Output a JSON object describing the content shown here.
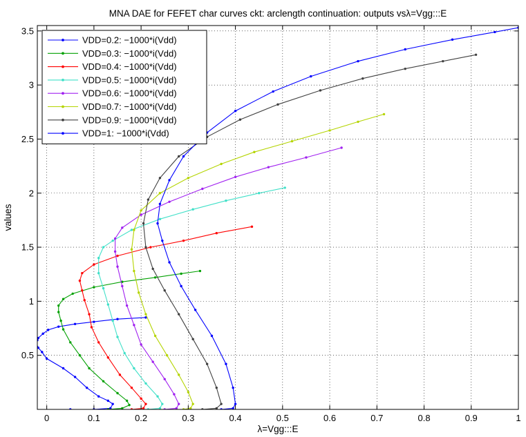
{
  "chart_data": {
    "type": "line",
    "title": "MNA DAE for FEFET char curves ckt: arclength continuation: outputs vsλ=Vgg:::E",
    "xlabel": "λ=Vgg:::E",
    "ylabel": "values",
    "xlim": [
      -0.02,
      1.0
    ],
    "ylim": [
      0,
      3.55
    ],
    "xticks": [
      "0",
      "0.1",
      "0.2",
      "0.3",
      "0.4",
      "0.5",
      "0.6",
      "0.7",
      "0.8",
      "0.9",
      "1"
    ],
    "xtick_values": [
      0,
      0.1,
      0.2,
      0.3,
      0.4,
      0.5,
      0.6,
      0.7,
      0.8,
      0.9,
      1.0
    ],
    "yticks": [
      "0.5",
      "1",
      "1.5",
      "2",
      "2.5",
      "3",
      "3.5"
    ],
    "ytick_values": [
      0.5,
      1.0,
      1.5,
      2.0,
      2.5,
      3.0,
      3.5
    ],
    "grid": true,
    "legend_position": "top-left",
    "series": [
      {
        "name": "VDD=0.2: −1000*i(Vdd)",
        "color": "#0000ff",
        "points": [
          [
            0.05,
            0
          ],
          [
            0.1,
            0
          ],
          [
            0.135,
            0.01
          ],
          [
            0.14,
            0.05
          ],
          [
            0.13,
            0.08
          ],
          [
            0.11,
            0.12
          ],
          [
            0.085,
            0.2
          ],
          [
            0.06,
            0.3
          ],
          [
            0.035,
            0.38
          ],
          [
            0.0,
            0.47
          ],
          [
            -0.01,
            0.53
          ],
          [
            -0.018,
            0.57
          ],
          [
            -0.022,
            0.61
          ],
          [
            -0.02,
            0.64
          ],
          [
            -0.018,
            0.66
          ],
          [
            -0.008,
            0.7
          ],
          [
            0.003,
            0.735
          ],
          [
            0.025,
            0.765
          ],
          [
            0.06,
            0.79
          ],
          [
            0.1,
            0.81
          ],
          [
            0.15,
            0.835
          ],
          [
            0.21,
            0.85
          ]
        ]
      },
      {
        "name": "VDD=0.3: −1000*i(Vdd)",
        "color": "#00a000",
        "points": [
          [
            0.13,
            0
          ],
          [
            0.16,
            0.01
          ],
          [
            0.175,
            0.04
          ],
          [
            0.17,
            0.08
          ],
          [
            0.15,
            0.15
          ],
          [
            0.12,
            0.26
          ],
          [
            0.09,
            0.38
          ],
          [
            0.07,
            0.5
          ],
          [
            0.05,
            0.62
          ],
          [
            0.035,
            0.74
          ],
          [
            0.03,
            0.82
          ],
          [
            0.025,
            0.9
          ],
          [
            0.025,
            0.96
          ],
          [
            0.035,
            1.02
          ],
          [
            0.055,
            1.07
          ],
          [
            0.1,
            1.13
          ],
          [
            0.16,
            1.18
          ],
          [
            0.23,
            1.22
          ],
          [
            0.285,
            1.255
          ],
          [
            0.325,
            1.28
          ]
        ]
      },
      {
        "name": "VDD=0.4: −1000*i(Vdd)",
        "color": "#ff0000",
        "points": [
          [
            0.18,
            0
          ],
          [
            0.205,
            0.01
          ],
          [
            0.21,
            0.05
          ],
          [
            0.2,
            0.1
          ],
          [
            0.18,
            0.2
          ],
          [
            0.155,
            0.32
          ],
          [
            0.13,
            0.48
          ],
          [
            0.11,
            0.62
          ],
          [
            0.095,
            0.76
          ],
          [
            0.09,
            0.88
          ],
          [
            0.08,
            1.01
          ],
          [
            0.075,
            1.1
          ],
          [
            0.07,
            1.19
          ],
          [
            0.075,
            1.26
          ],
          [
            0.1,
            1.34
          ],
          [
            0.15,
            1.42
          ],
          [
            0.22,
            1.5
          ],
          [
            0.29,
            1.56
          ],
          [
            0.36,
            1.63
          ],
          [
            0.435,
            1.69
          ]
        ]
      },
      {
        "name": "VDD=0.5: −1000*i(Vdd)",
        "color": "#40e0c8",
        "points": [
          [
            0.215,
            0
          ],
          [
            0.24,
            0.01
          ],
          [
            0.245,
            0.05
          ],
          [
            0.235,
            0.12
          ],
          [
            0.21,
            0.24
          ],
          [
            0.185,
            0.38
          ],
          [
            0.165,
            0.52
          ],
          [
            0.15,
            0.67
          ],
          [
            0.14,
            0.82
          ],
          [
            0.13,
            0.97
          ],
          [
            0.12,
            1.12
          ],
          [
            0.11,
            1.26
          ],
          [
            0.11,
            1.4
          ],
          [
            0.12,
            1.5
          ],
          [
            0.14,
            1.56
          ],
          [
            0.18,
            1.66
          ],
          [
            0.24,
            1.76
          ],
          [
            0.31,
            1.85
          ],
          [
            0.38,
            1.93
          ],
          [
            0.45,
            2.0
          ],
          [
            0.505,
            2.05
          ]
        ]
      },
      {
        "name": "VDD=0.6: −1000*i(Vdd)",
        "color": "#a020f0",
        "points": [
          [
            0.25,
            0
          ],
          [
            0.275,
            0.01
          ],
          [
            0.28,
            0.05
          ],
          [
            0.27,
            0.14
          ],
          [
            0.25,
            0.28
          ],
          [
            0.225,
            0.44
          ],
          [
            0.2,
            0.6
          ],
          [
            0.185,
            0.78
          ],
          [
            0.17,
            0.96
          ],
          [
            0.16,
            1.14
          ],
          [
            0.15,
            1.32
          ],
          [
            0.145,
            1.46
          ],
          [
            0.145,
            1.58
          ],
          [
            0.16,
            1.68
          ],
          [
            0.2,
            1.8
          ],
          [
            0.26,
            1.92
          ],
          [
            0.33,
            2.04
          ],
          [
            0.4,
            2.15
          ],
          [
            0.47,
            2.24
          ],
          [
            0.55,
            2.33
          ],
          [
            0.625,
            2.42
          ]
        ]
      },
      {
        "name": "VDD=0.7: −1000*i(Vdd)",
        "color": "#b4d400",
        "points": [
          [
            0.29,
            0
          ],
          [
            0.305,
            0.01
          ],
          [
            0.31,
            0.05
          ],
          [
            0.3,
            0.16
          ],
          [
            0.28,
            0.32
          ],
          [
            0.255,
            0.5
          ],
          [
            0.23,
            0.68
          ],
          [
            0.21,
            0.88
          ],
          [
            0.195,
            1.08
          ],
          [
            0.185,
            1.28
          ],
          [
            0.18,
            1.48
          ],
          [
            0.185,
            1.66
          ],
          [
            0.2,
            1.84
          ],
          [
            0.24,
            2.0
          ],
          [
            0.3,
            2.14
          ],
          [
            0.37,
            2.27
          ],
          [
            0.44,
            2.38
          ],
          [
            0.52,
            2.48
          ],
          [
            0.6,
            2.58
          ],
          [
            0.66,
            2.66
          ],
          [
            0.715,
            2.73
          ]
        ]
      },
      {
        "name": "VDD=0.9: −1000*i(Vdd)",
        "color": "#404040",
        "points": [
          [
            0.33,
            0
          ],
          [
            0.36,
            0.01
          ],
          [
            0.37,
            0.05
          ],
          [
            0.36,
            0.2
          ],
          [
            0.34,
            0.42
          ],
          [
            0.31,
            0.65
          ],
          [
            0.28,
            0.88
          ],
          [
            0.25,
            1.1
          ],
          [
            0.225,
            1.3
          ],
          [
            0.21,
            1.5
          ],
          [
            0.205,
            1.72
          ],
          [
            0.215,
            1.94
          ],
          [
            0.24,
            2.14
          ],
          [
            0.28,
            2.34
          ],
          [
            0.34,
            2.52
          ],
          [
            0.41,
            2.68
          ],
          [
            0.49,
            2.82
          ],
          [
            0.58,
            2.95
          ],
          [
            0.67,
            3.06
          ],
          [
            0.76,
            3.15
          ],
          [
            0.84,
            3.22
          ],
          [
            0.91,
            3.28
          ]
        ]
      },
      {
        "name": "VDD=1: −1000*i(Vdd)",
        "color": "#0000ff",
        "points": [
          [
            0.37,
            0
          ],
          [
            0.395,
            0.01
          ],
          [
            0.4,
            0.05
          ],
          [
            0.395,
            0.2
          ],
          [
            0.38,
            0.42
          ],
          [
            0.35,
            0.68
          ],
          [
            0.315,
            0.92
          ],
          [
            0.285,
            1.14
          ],
          [
            0.26,
            1.36
          ],
          [
            0.245,
            1.56
          ],
          [
            0.235,
            1.72
          ],
          [
            0.24,
            1.9
          ],
          [
            0.26,
            2.12
          ],
          [
            0.29,
            2.34
          ],
          [
            0.34,
            2.56
          ],
          [
            0.4,
            2.76
          ],
          [
            0.48,
            2.94
          ],
          [
            0.56,
            3.08
          ],
          [
            0.66,
            3.22
          ],
          [
            0.76,
            3.33
          ],
          [
            0.86,
            3.42
          ],
          [
            0.95,
            3.49
          ],
          [
            1.0,
            3.53
          ]
        ]
      }
    ]
  }
}
